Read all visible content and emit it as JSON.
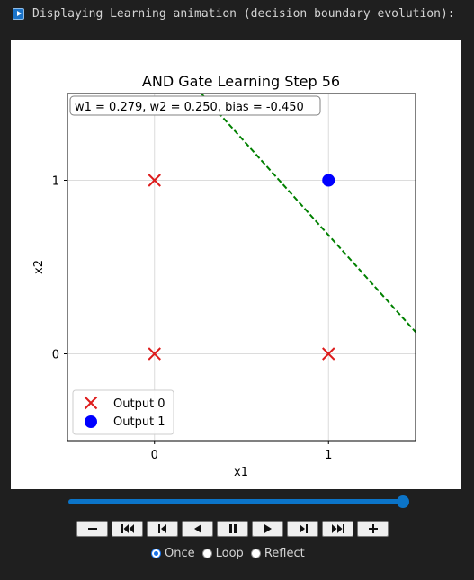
{
  "header": {
    "text": "Displaying Learning animation (decision boundary evolution):"
  },
  "chart_data": {
    "type": "scatter",
    "title": "AND Gate Learning Step 56",
    "xlabel": "x1",
    "ylabel": "x2",
    "xlim": [
      -0.5,
      1.5
    ],
    "ylim": [
      -0.5,
      1.5
    ],
    "xticks": [
      0,
      1
    ],
    "yticks": [
      0,
      1
    ],
    "grid": true,
    "annotation": "w1 = 0.279, w2 = 0.250, bias = -0.450",
    "weights": {
      "w1": 0.279,
      "w2": 0.25,
      "bias": -0.45
    },
    "series": [
      {
        "name": "Output 0",
        "marker": "x",
        "color": "#dd1c1c",
        "points": [
          [
            0,
            1
          ],
          [
            0,
            0
          ],
          [
            1,
            0
          ]
        ]
      },
      {
        "name": "Output 1",
        "marker": "o",
        "color": "#0000ff",
        "points": [
          [
            1,
            1
          ]
        ]
      }
    ],
    "boundary": {
      "color": "#008000",
      "style": "dashed"
    },
    "legend": "lower-left"
  },
  "player": {
    "slider_value": 1.0,
    "buttons": [
      "decrease",
      "first",
      "previous",
      "reverse",
      "pause",
      "play",
      "next",
      "last",
      "increase"
    ],
    "modes": [
      {
        "label": "Once",
        "checked": true
      },
      {
        "label": "Loop",
        "checked": false
      },
      {
        "label": "Reflect",
        "checked": false
      }
    ]
  }
}
